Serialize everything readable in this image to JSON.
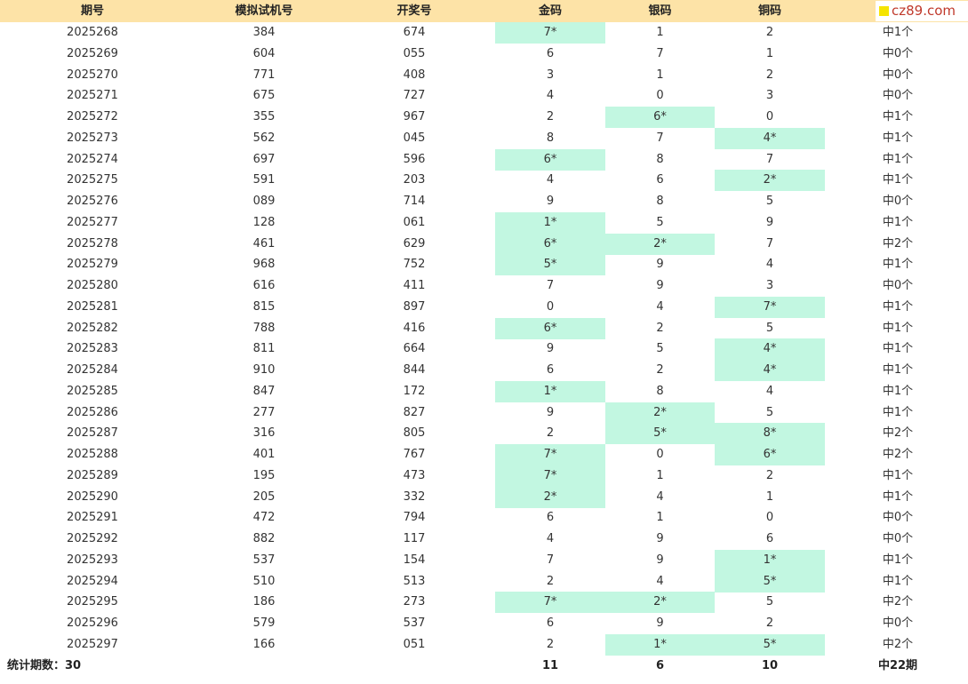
{
  "table": {
    "header": [
      "期号",
      "模拟试机号",
      "开奖号",
      "金码",
      "银码",
      "铜码"
    ],
    "logo": "cz89.com",
    "rows": [
      [
        "2025268",
        "384",
        "674",
        "7*",
        "1",
        "2",
        "中1个"
      ],
      [
        "2025269",
        "604",
        "055",
        "6",
        "7",
        "1",
        "中0个"
      ],
      [
        "2025270",
        "771",
        "408",
        "3",
        "1",
        "2",
        "中0个"
      ],
      [
        "2025271",
        "675",
        "727",
        "4",
        "0",
        "3",
        "中0个"
      ],
      [
        "2025272",
        "355",
        "967",
        "2",
        "6*",
        "0",
        "中1个"
      ],
      [
        "2025273",
        "562",
        "045",
        "8",
        "7",
        "4*",
        "中1个"
      ],
      [
        "2025274",
        "697",
        "596",
        "6*",
        "8",
        "7",
        "中1个"
      ],
      [
        "2025275",
        "591",
        "203",
        "4",
        "6",
        "2*",
        "中1个"
      ],
      [
        "2025276",
        "089",
        "714",
        "9",
        "8",
        "5",
        "中0个"
      ],
      [
        "2025277",
        "128",
        "061",
        "1*",
        "5",
        "9",
        "中1个"
      ],
      [
        "2025278",
        "461",
        "629",
        "6*",
        "2*",
        "7",
        "中2个"
      ],
      [
        "2025279",
        "968",
        "752",
        "5*",
        "9",
        "4",
        "中1个"
      ],
      [
        "2025280",
        "616",
        "411",
        "7",
        "9",
        "3",
        "中0个"
      ],
      [
        "2025281",
        "815",
        "897",
        "0",
        "4",
        "7*",
        "中1个"
      ],
      [
        "2025282",
        "788",
        "416",
        "6*",
        "2",
        "5",
        "中1个"
      ],
      [
        "2025283",
        "811",
        "664",
        "9",
        "5",
        "4*",
        "中1个"
      ],
      [
        "2025284",
        "910",
        "844",
        "6",
        "2",
        "4*",
        "中1个"
      ],
      [
        "2025285",
        "847",
        "172",
        "1*",
        "8",
        "4",
        "中1个"
      ],
      [
        "2025286",
        "277",
        "827",
        "9",
        "2*",
        "5",
        "中1个"
      ],
      [
        "2025287",
        "316",
        "805",
        "2",
        "5*",
        "8*",
        "中2个"
      ],
      [
        "2025288",
        "401",
        "767",
        "7*",
        "0",
        "6*",
        "中2个"
      ],
      [
        "2025289",
        "195",
        "473",
        "7*",
        "1",
        "2",
        "中1个"
      ],
      [
        "2025290",
        "205",
        "332",
        "2*",
        "4",
        "1",
        "中1个"
      ],
      [
        "2025291",
        "472",
        "794",
        "6",
        "1",
        "0",
        "中0个"
      ],
      [
        "2025292",
        "882",
        "117",
        "4",
        "9",
        "6",
        "中0个"
      ],
      [
        "2025293",
        "537",
        "154",
        "7",
        "9",
        "1*",
        "中1个"
      ],
      [
        "2025294",
        "510",
        "513",
        "2",
        "4",
        "5*",
        "中1个"
      ],
      [
        "2025295",
        "186",
        "273",
        "7*",
        "2*",
        "5",
        "中2个"
      ],
      [
        "2025296",
        "579",
        "537",
        "6",
        "9",
        "2",
        "中0个"
      ],
      [
        "2025297",
        "166",
        "051",
        "2",
        "1*",
        "5*",
        "中2个"
      ]
    ],
    "footer": [
      "统计期数：30",
      "11",
      "6",
      "10",
      "中22期"
    ],
    "highlight_color": "#c2f7e1"
  }
}
